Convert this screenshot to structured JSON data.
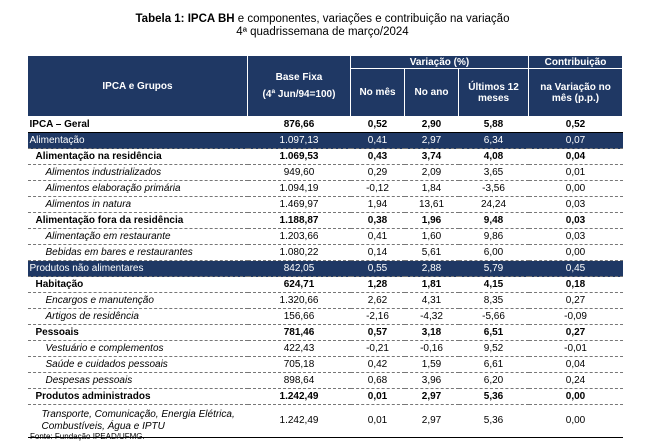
{
  "header": {
    "title_bold": "Tabela 1: IPCA BH",
    "title_rest": " e componentes, variações e contribuição na variação",
    "subtitle": "4ª quadrissemana de março/2024"
  },
  "table": {
    "columns": {
      "group": "IPCA e Grupos",
      "base": "Base Fixa",
      "base_ref": "(4ª Jun/94=100)",
      "variation": "Variação (%)",
      "month": "No mês",
      "year": "No ano",
      "twelve": "Últimos 12 meses",
      "contrib": "Contribuição",
      "contrib_sub": "na Variação no mês (p.p.)"
    },
    "rows": [
      {
        "level": "total",
        "cells": [
          "IPCA – Geral",
          "876,66",
          "0,52",
          "2,90",
          "5,88",
          "0,52"
        ]
      },
      {
        "level": "group",
        "cells": [
          "Alimentação",
          "1.097,13",
          "0,41",
          "2,97",
          "6,34",
          "0,07"
        ]
      },
      {
        "level": "sub",
        "cells": [
          "Alimentação na residência",
          "1.069,53",
          "0,43",
          "3,74",
          "4,08",
          "0,04"
        ]
      },
      {
        "level": "item",
        "cells": [
          "Alimentos industrializados",
          "949,60",
          "0,29",
          "2,09",
          "3,65",
          "0,01"
        ]
      },
      {
        "level": "item",
        "cells": [
          "Alimentos elaboração primária",
          "1.094,19",
          "-0,12",
          "1,84",
          "-3,56",
          "0,00"
        ]
      },
      {
        "level": "item",
        "cells": [
          "Alimentos in natura",
          "1.469,97",
          "1,94",
          "13,61",
          "24,24",
          "0,03"
        ]
      },
      {
        "level": "sub",
        "cells": [
          "Alimentação fora da residência",
          "1.188,87",
          "0,38",
          "1,96",
          "9,48",
          "0,03"
        ]
      },
      {
        "level": "item",
        "cells": [
          "Alimentação em restaurante",
          "1.203,66",
          "0,41",
          "1,60",
          "9,86",
          "0,03"
        ]
      },
      {
        "level": "item",
        "cells": [
          "Bebidas em bares e restaurantes",
          "1.080,22",
          "0,14",
          "5,61",
          "6,00",
          "0,00"
        ]
      },
      {
        "level": "group",
        "cells": [
          "Produtos não alimentares",
          "842,05",
          "0,55",
          "2,88",
          "5,79",
          "0,45"
        ]
      },
      {
        "level": "sub",
        "cells": [
          "Habitação",
          "624,71",
          "1,28",
          "1,81",
          "4,15",
          "0,18"
        ]
      },
      {
        "level": "item",
        "cells": [
          "Encargos e manutenção",
          "1.320,66",
          "2,62",
          "4,31",
          "8,35",
          "0,27"
        ]
      },
      {
        "level": "item",
        "cells": [
          "Artigos de residência",
          "156,66",
          "-2,16",
          "-4,32",
          "-5,66",
          "-0,09"
        ]
      },
      {
        "level": "sub",
        "cells": [
          "Pessoais",
          "781,46",
          "0,57",
          "3,18",
          "6,51",
          "0,27"
        ]
      },
      {
        "level": "item",
        "cells": [
          "Vestuário e complementos",
          "422,43",
          "-0,21",
          "-0,16",
          "9,52",
          "-0,01"
        ]
      },
      {
        "level": "item",
        "cells": [
          "Saúde e cuidados pessoais",
          "705,18",
          "0,42",
          "1,59",
          "6,61",
          "0,04"
        ]
      },
      {
        "level": "item",
        "cells": [
          "Despesas pessoais",
          "898,64",
          "0,68",
          "3,96",
          "6,20",
          "0,24"
        ]
      },
      {
        "level": "sub",
        "cells": [
          "Produtos administrados",
          "1.242,49",
          "0,01",
          "2,97",
          "5,36",
          "0,00"
        ]
      },
      {
        "level": "item",
        "cells": [
          "Transporte, Comunicação, Energia Elétrica, Combustíveis, Água e IPTU",
          "1.242,49",
          "0,01",
          "2,97",
          "5,36",
          "0,00"
        ]
      }
    ]
  },
  "footer": {
    "source": "Fonte: Fundação IPEAD/UFMG."
  }
}
